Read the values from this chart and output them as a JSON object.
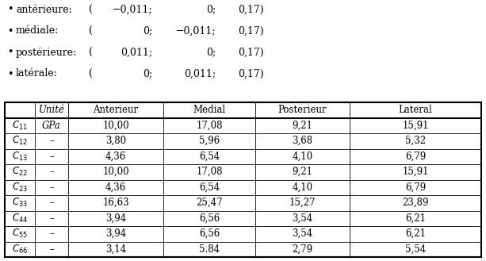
{
  "bullet_items": [
    [
      "antérieure:",
      "(",
      "−0,011;",
      "0;",
      "0,17)"
    ],
    [
      "médiale:",
      "(",
      "0;",
      "−0,011;",
      "0,17)"
    ],
    [
      "postérieure:",
      "(",
      "0,011;",
      "0;",
      "0,17)"
    ],
    [
      "latérale:",
      "(",
      "0;",
      "0,011;",
      "0,17)"
    ]
  ],
  "col_headers": [
    "",
    "Unité",
    "Anterieur",
    "Medial",
    "Posterieur",
    "Lateral"
  ],
  "row_labels_raw": [
    "C_{11}",
    "C_{12}",
    "C_{13}",
    "C_{22}",
    "C_{23}",
    "C_{33}",
    "C_{44}",
    "C_{55}",
    "C_{66}"
  ],
  "row_labels_tex": [
    "$C_{11}$",
    "$C_{12}$",
    "$C_{13}$",
    "$C_{22}$",
    "$C_{23}$",
    "$C_{33}$",
    "$C_{44}$",
    "$C_{55}$",
    "$C_{66}$"
  ],
  "unit_col": [
    "$GPa$",
    "–",
    "–",
    "–",
    "–",
    "–",
    "–",
    "–",
    "–"
  ],
  "table_data": [
    [
      "10,00",
      "17,08",
      "9,21",
      "15,91"
    ],
    [
      "3,80",
      "5,96",
      "3,68",
      "5,32"
    ],
    [
      "4,36",
      "6,54",
      "4,10",
      "6,79"
    ],
    [
      "10,00",
      "17,08",
      "9,21",
      "15,91"
    ],
    [
      "4,36",
      "6,54",
      "4,10",
      "6,79"
    ],
    [
      "16,63",
      "25,47",
      "15,27",
      "23,89"
    ],
    [
      "3,94",
      "6,56",
      "3,54",
      "6,21"
    ],
    [
      "3,94",
      "6,56",
      "3,54",
      "6,21"
    ],
    [
      "3,14",
      "5.84",
      "2,79",
      "5,54"
    ]
  ],
  "bg_color": "#ffffff",
  "text_color": "#000000",
  "font_size": 8.5,
  "bullet_font_size": 9.0
}
